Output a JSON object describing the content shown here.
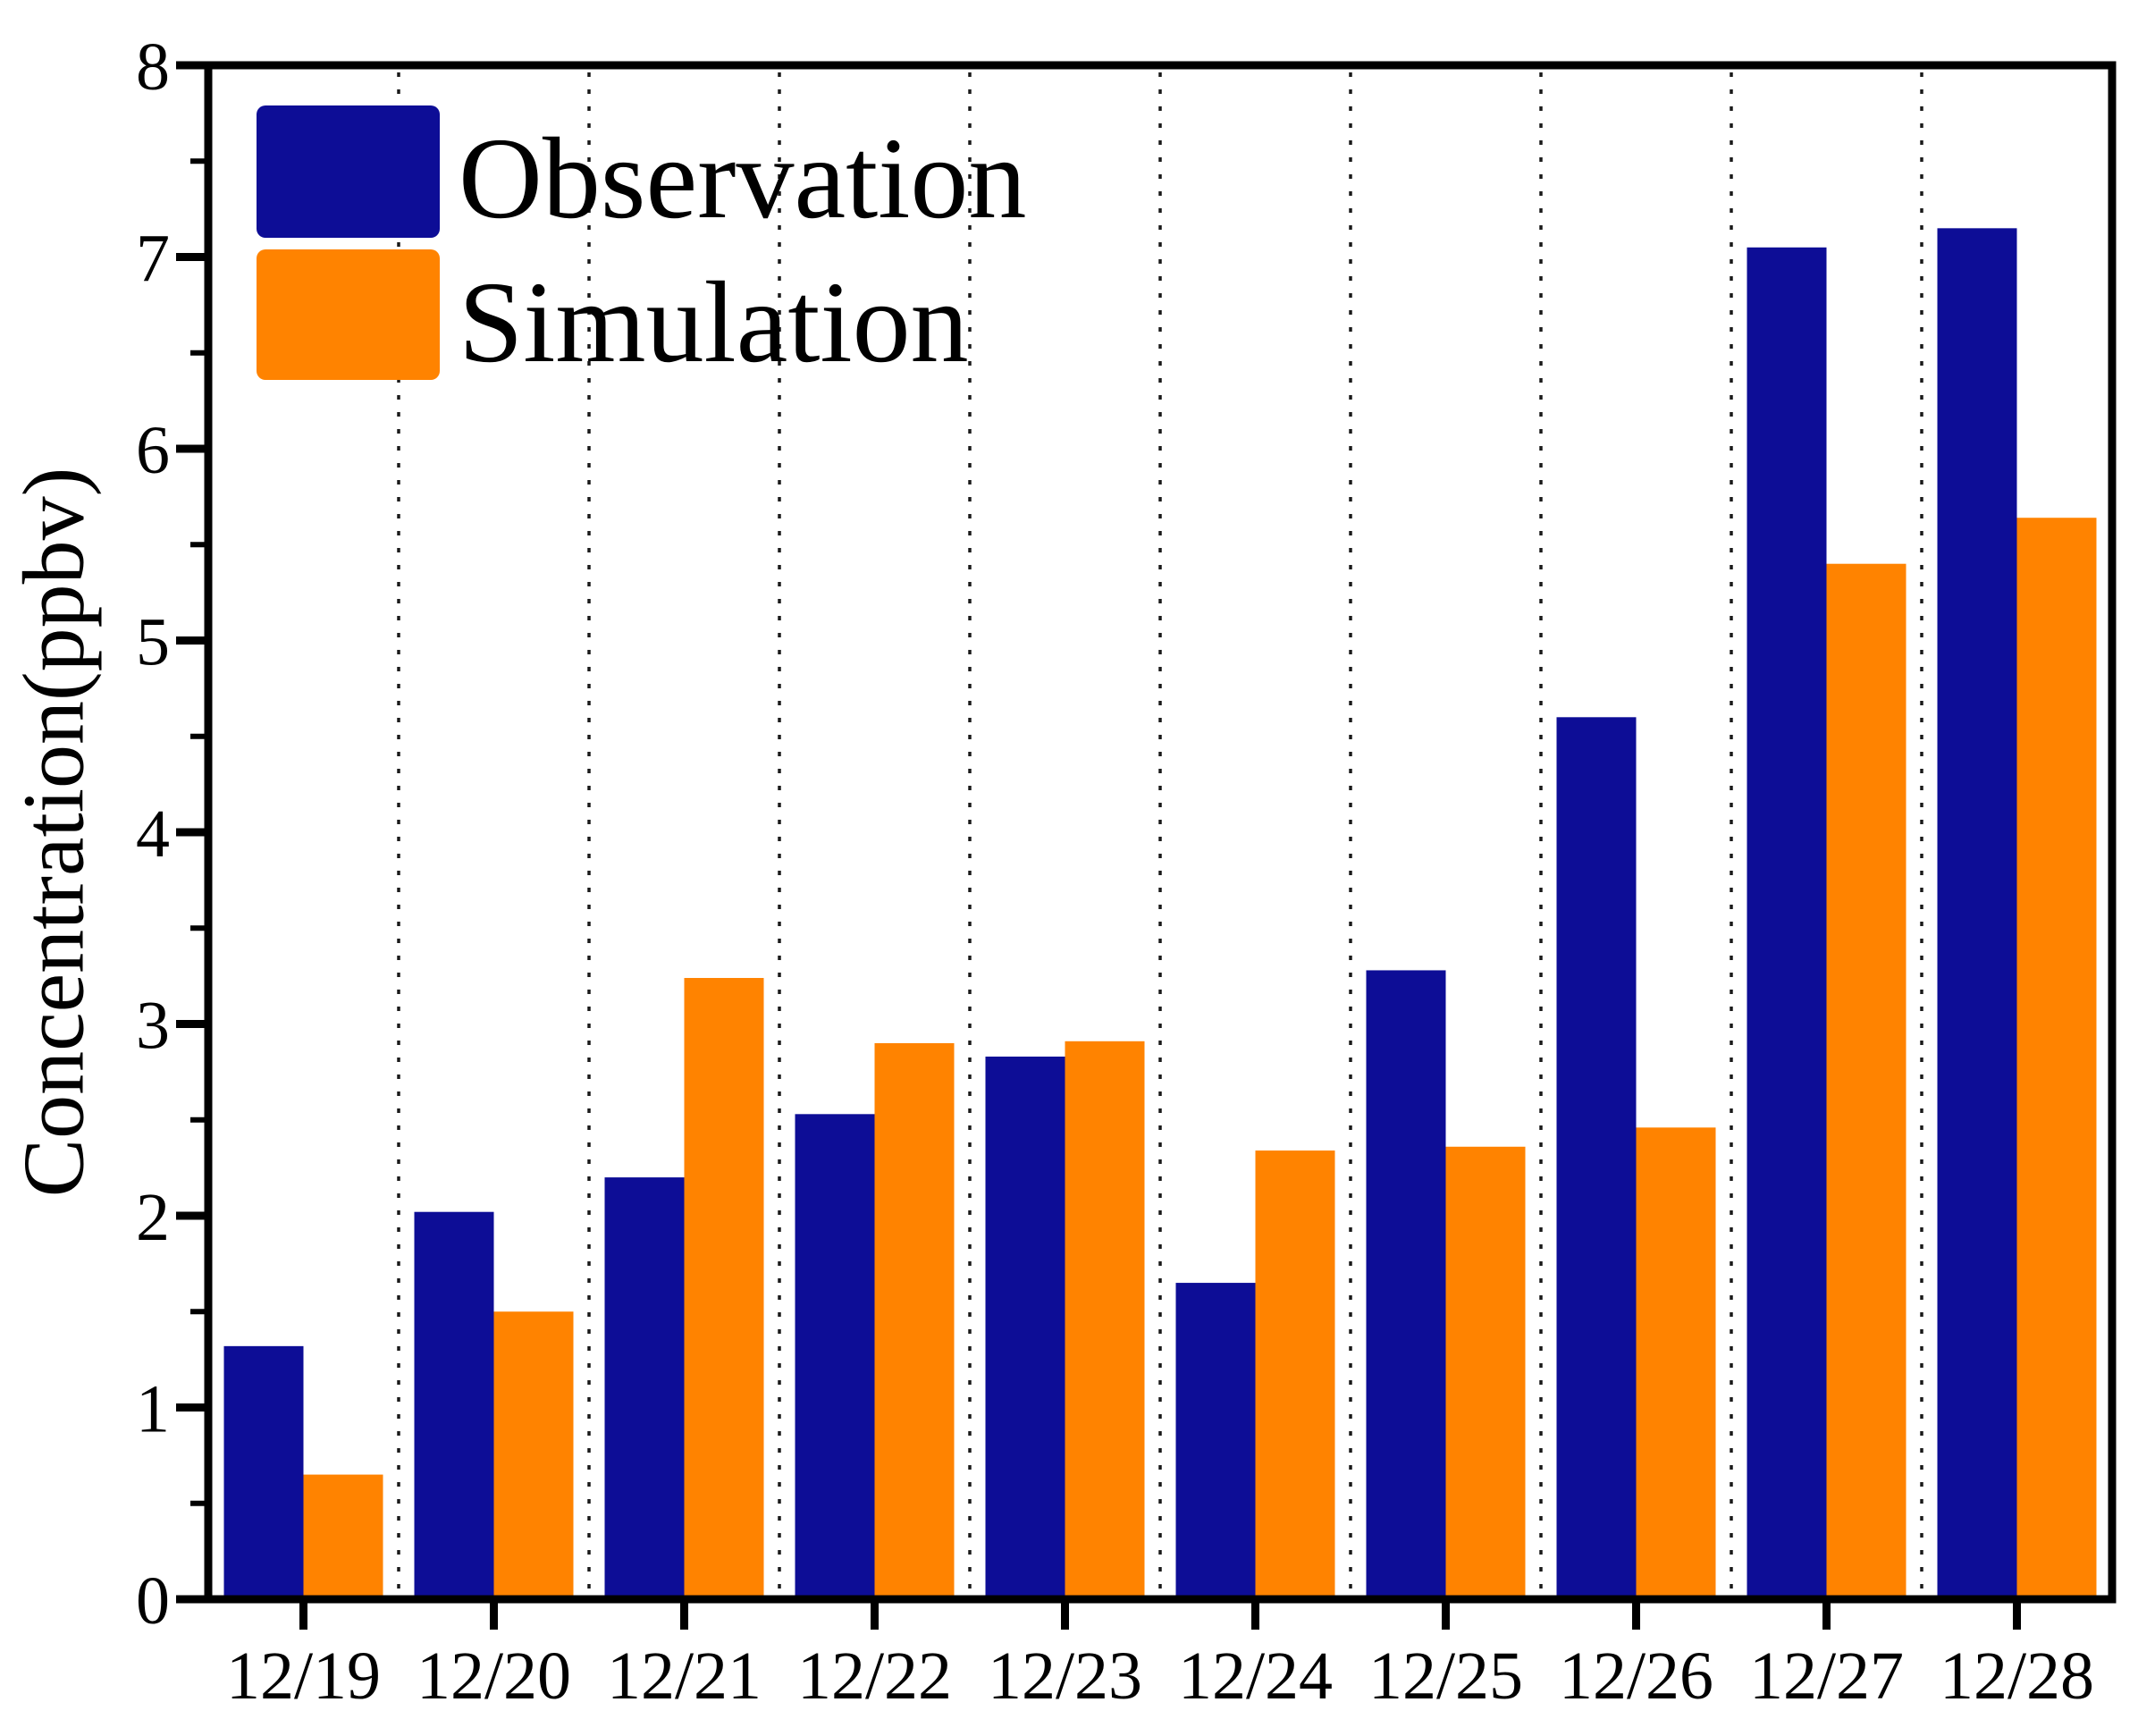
{
  "chart_data": {
    "type": "bar",
    "title": "",
    "xlabel": "",
    "ylabel": "Concentration(ppbv)",
    "ylim": [
      0,
      8
    ],
    "ytick_step": 1,
    "ytick_minor_step": 0.5,
    "ytick_labels": [
      "0",
      "1",
      "2",
      "3",
      "4",
      "5",
      "6",
      "7",
      "8"
    ],
    "grid": "vertical-dotted-between-groups",
    "legend_position": "top-left-inside",
    "categories": [
      "12/19",
      "12/20",
      "12/21",
      "12/22",
      "12/23",
      "12/24",
      "12/25",
      "12/26",
      "12/27",
      "12/28"
    ],
    "series": [
      {
        "name": "Observation",
        "color": "#0D0D96",
        "values": [
          1.32,
          2.02,
          2.2,
          2.53,
          2.83,
          1.65,
          3.28,
          4.6,
          7.05,
          7.15
        ]
      },
      {
        "name": "Simulation",
        "color": "#FF8300",
        "values": [
          0.65,
          1.5,
          3.24,
          2.9,
          2.91,
          2.34,
          2.36,
          2.46,
          5.4,
          5.64
        ]
      }
    ],
    "frame_color": "#000000",
    "gridline_color": "#1a1a1a"
  }
}
